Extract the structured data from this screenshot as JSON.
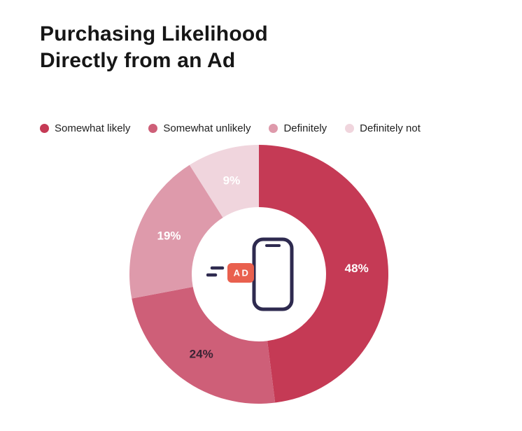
{
  "title": {
    "line1": "Purchasing Likelihood",
    "line2": "Directly from an Ad"
  },
  "legend": {
    "items": [
      {
        "label": "Somewhat likely",
        "color": "#C53A55"
      },
      {
        "label": "Somewhat unlikely",
        "color": "#CE5F78"
      },
      {
        "label": "Definitely",
        "color": "#DE9AAB"
      },
      {
        "label": "Definitely not",
        "color": "#F0D5DD"
      }
    ]
  },
  "chart_data": {
    "type": "pie",
    "subtype": "donut",
    "title": "Purchasing Likelihood Directly from an Ad",
    "categories": [
      "Somewhat likely",
      "Somewhat unlikely",
      "Definitely",
      "Definitely not"
    ],
    "values": [
      48,
      24,
      19,
      9
    ],
    "unit": "%",
    "labels": [
      "48%",
      "24%",
      "19%",
      "9%"
    ],
    "colors": [
      "#C53A55",
      "#CE5F78",
      "#DE9AAB",
      "#F0D5DD"
    ],
    "label_colors": [
      "#FFFFFF",
      "#3A2334",
      "#FFFFFF",
      "#FFFFFF"
    ],
    "start_angle_deg": 0,
    "direction": "clockwise",
    "inner_radius_ratio": 0.52,
    "legend_position": "top",
    "center_icon": "smartphone-with-ad-badge"
  },
  "icon": {
    "ad_label": "AD",
    "badge_color": "#E9604E",
    "phone_stroke": "#2E2A4F"
  }
}
